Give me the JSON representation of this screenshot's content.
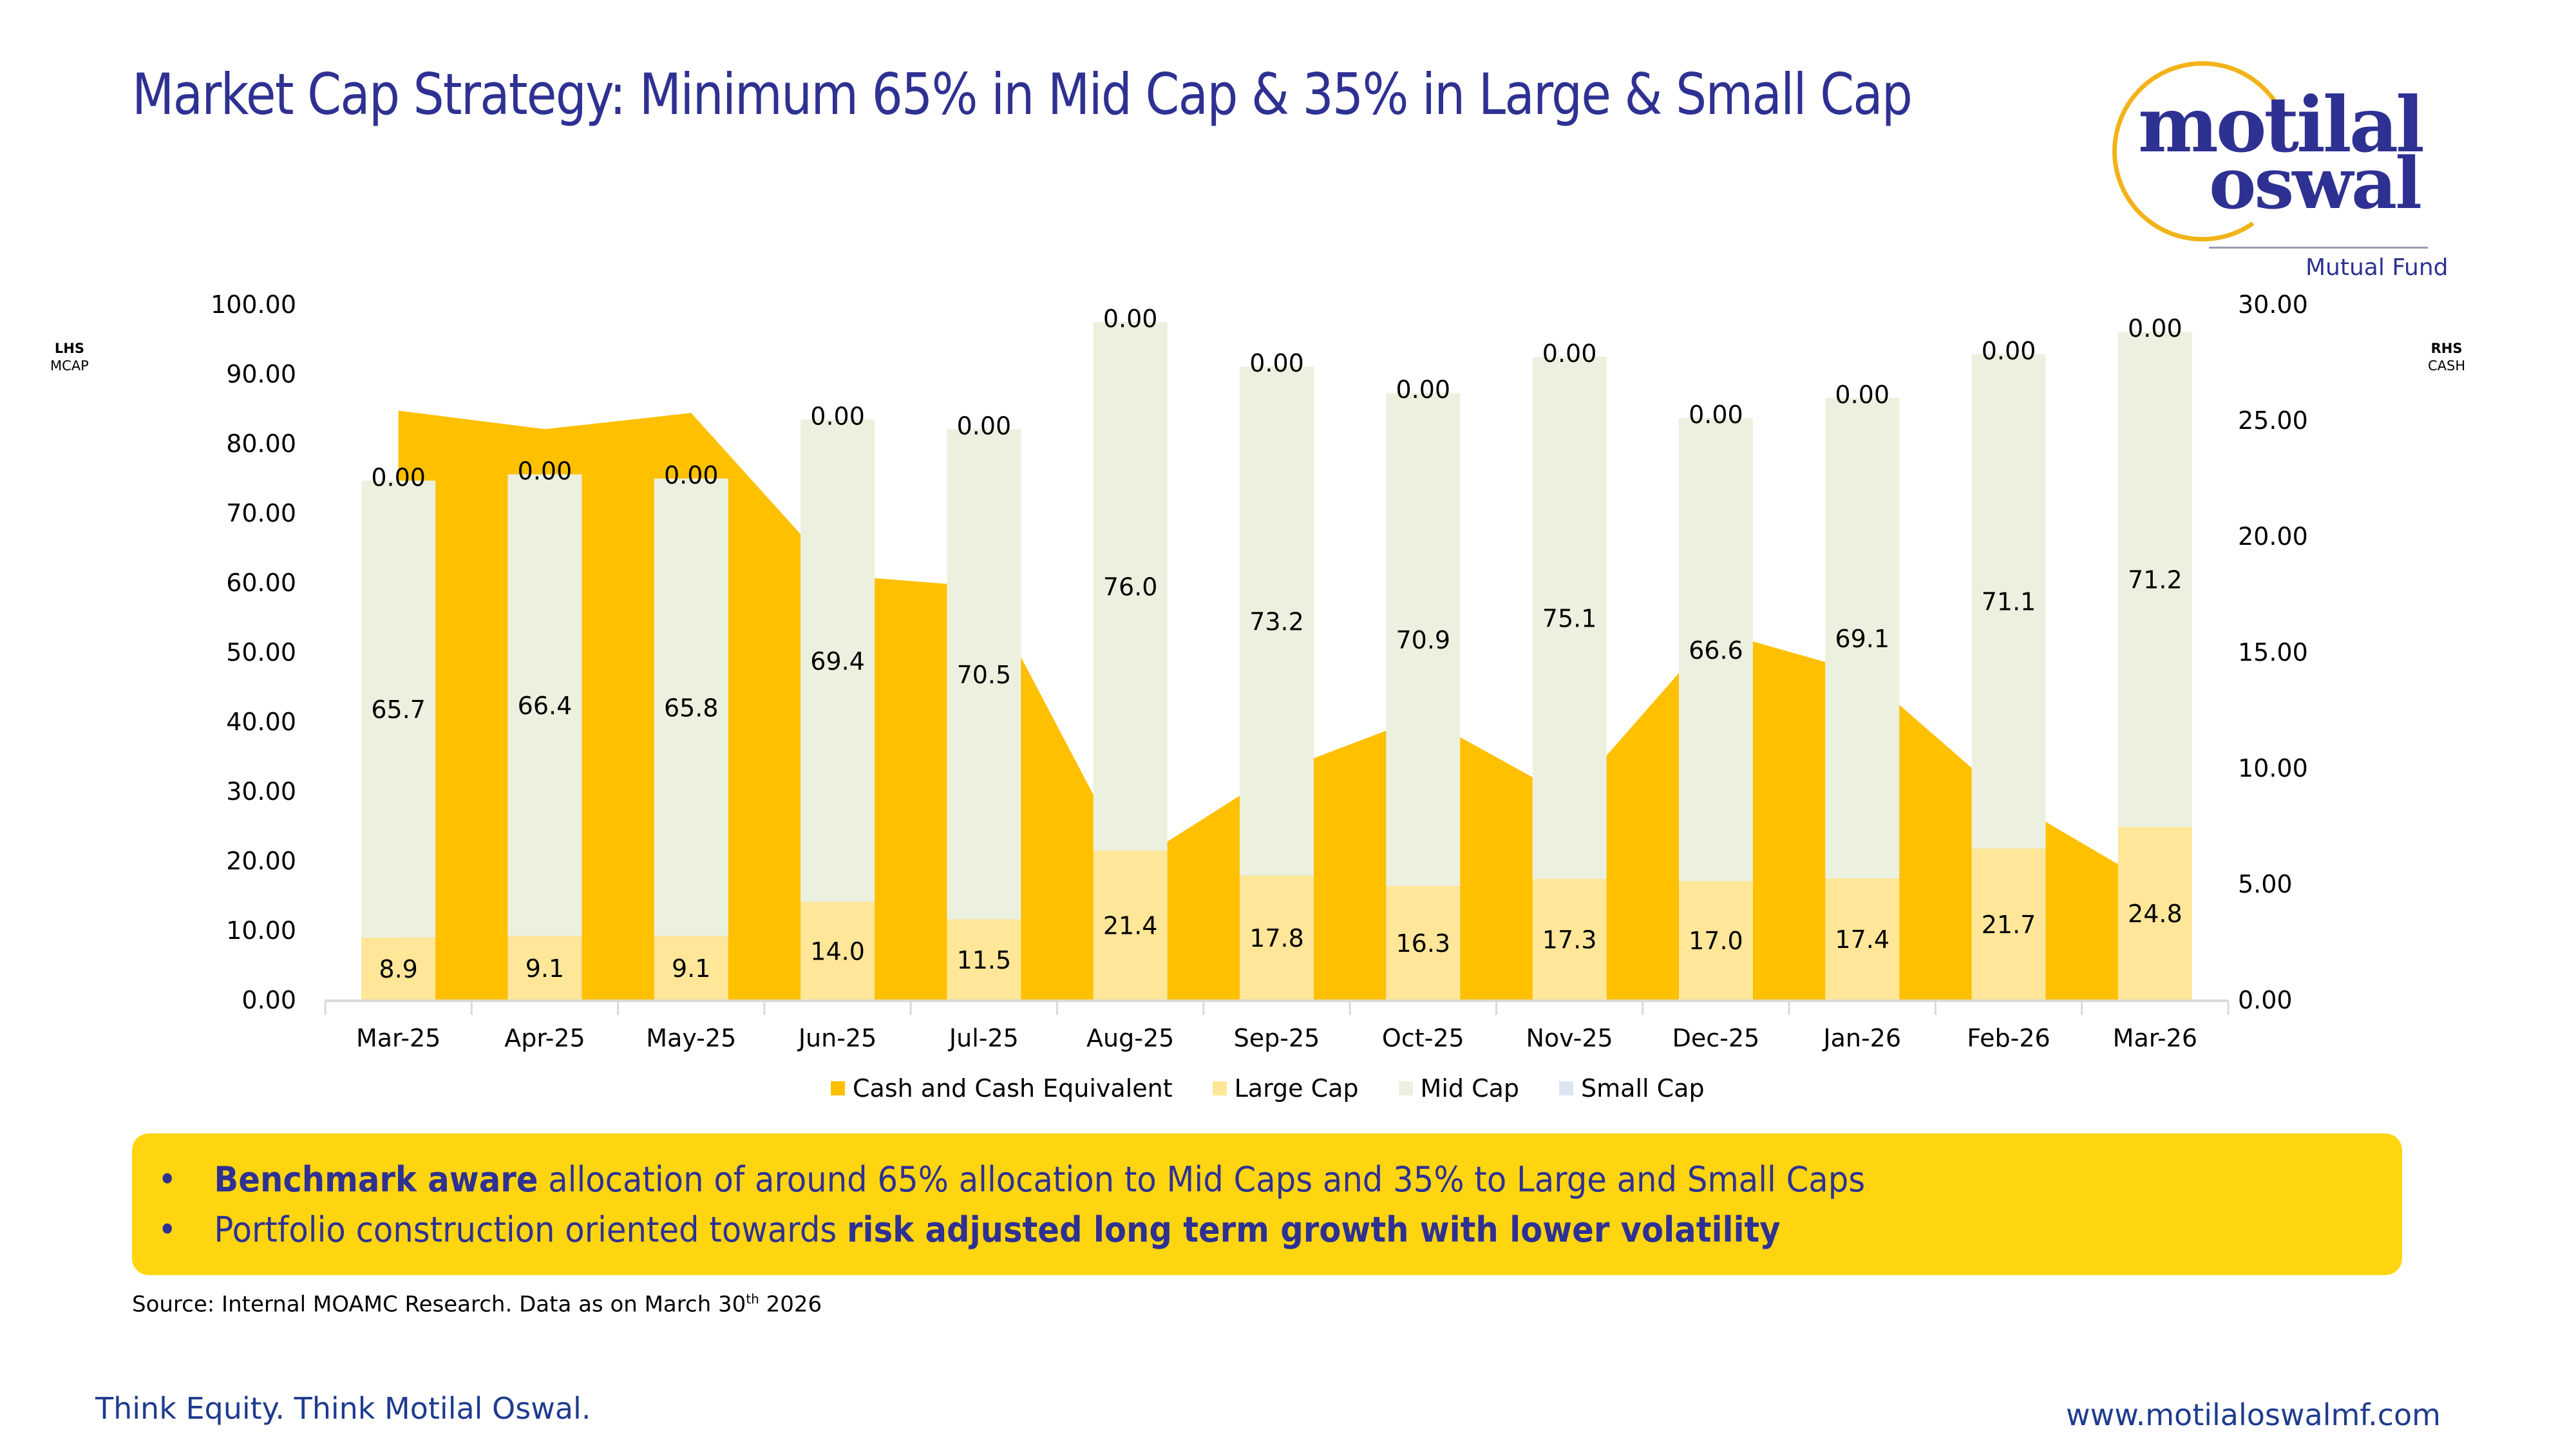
{
  "page": {
    "title": "Market Cap Strategy: Minimum 65% in Mid Cap & 35% in Large & Small Cap",
    "logo": {
      "line1": "motilal",
      "line2": "oswal",
      "subtitle": "Mutual Fund",
      "ring_color": "#f2b31a",
      "text_color": "#2e3192"
    },
    "lhs_tag": {
      "bold": "LHS",
      "label": "MCAP"
    },
    "rhs_tag": {
      "bold": "RHS",
      "label": "CASH"
    },
    "callout": {
      "bullet": "•",
      "line1_bold": "Benchmark aware",
      "line1_rest": " allocation of around 65% allocation to Mid Caps and 35% to Large and Small Caps",
      "line2_start": "Portfolio construction oriented towards ",
      "line2_bold": "risk adjusted long term growth with lower volatility",
      "bg_color": "#ffd510"
    },
    "source": {
      "text": "Source: Internal MOAMC Research.  Data as on March 30",
      "sup": "th",
      "year": " 2026"
    },
    "footer": {
      "tagline": "Think Equity. Think Motilal Oswal.",
      "url": "www.motilaloswalmf.com"
    }
  },
  "chart_data": {
    "type": "bar",
    "subtype": "stacked-bar-with-secondary-area",
    "title": "Market Cap Strategy: Minimum 65% in Mid Cap & 35% in Large & Small Cap",
    "categories": [
      "Mar-25",
      "Apr-25",
      "May-25",
      "Jun-25",
      "Jul-25",
      "Aug-25",
      "Sep-25",
      "Oct-25",
      "Nov-25",
      "Dec-25",
      "Jan-26",
      "Feb-26",
      "Mar-26"
    ],
    "y_left": {
      "label": "LHS MCAP",
      "range": [
        0,
        100
      ],
      "ticks": [
        "0.00",
        "10.00",
        "20.00",
        "30.00",
        "40.00",
        "50.00",
        "60.00",
        "70.00",
        "80.00",
        "90.00",
        "100.00"
      ]
    },
    "y_right": {
      "label": "RHS CASH",
      "range": [
        0,
        30
      ],
      "ticks": [
        "0.00",
        "5.00",
        "10.00",
        "15.00",
        "20.00",
        "25.00",
        "30.00"
      ]
    },
    "grid": false,
    "legend_position": "bottom",
    "series": [
      {
        "name": "Cash and Cash Equivalent",
        "type": "area",
        "axis": "right",
        "color": "#ffc000",
        "values": [
          25.4,
          24.6,
          25.3,
          18.3,
          17.8,
          5.8,
          9.8,
          12.2,
          8.7,
          15.9,
          14.1,
          8.6,
          4.9
        ]
      },
      {
        "name": "Large Cap",
        "type": "bar",
        "axis": "left",
        "color": "#ffe699",
        "values": [
          8.9,
          9.1,
          9.1,
          14.0,
          11.5,
          21.4,
          17.8,
          16.3,
          17.3,
          17.0,
          17.4,
          21.7,
          24.8
        ],
        "labels": [
          "8.9",
          "9.1",
          "9.1",
          "14.0",
          "11.5",
          "21.4",
          "17.8",
          "16.3",
          "17.3",
          "17.0",
          "17.4",
          "21.7",
          "24.8"
        ]
      },
      {
        "name": "Mid Cap",
        "type": "bar",
        "axis": "left",
        "color": "#ebf1de",
        "values": [
          65.7,
          66.4,
          65.8,
          69.4,
          70.5,
          76.0,
          73.2,
          70.9,
          75.1,
          66.6,
          69.1,
          71.1,
          71.2
        ],
        "labels": [
          "65.7",
          "66.4",
          "65.8",
          "69.4",
          "70.5",
          "76.0",
          "73.2",
          "70.9",
          "75.1",
          "66.6",
          "69.1",
          "71.1",
          "71.2"
        ]
      },
      {
        "name": "Small Cap",
        "type": "bar",
        "axis": "left",
        "color": "#dce6f2",
        "values": [
          0,
          0,
          0,
          0,
          0,
          0,
          0,
          0,
          0,
          0,
          0,
          0,
          0
        ],
        "labels": [
          "0.00",
          "0.00",
          "0.00",
          "0.00",
          "0.00",
          "0.00",
          "0.00",
          "0.00",
          "0.00",
          "0.00",
          "0.00",
          "0.00",
          "0.00"
        ]
      }
    ]
  }
}
